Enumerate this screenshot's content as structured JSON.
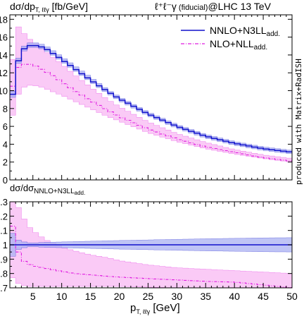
{
  "header": {
    "ylabel_main": "dσ/dp",
    "ylabel_main_sub": "T, ℓℓγ",
    "ylabel_main_unit": " [fb/GeV]",
    "process": "ℓ⁺ℓ⁻γ",
    "fiducial": " (fiducial)",
    "collider": "@LHC 13 TeV"
  },
  "side_note": {
    "prefix": "produced with ",
    "matrix": "Matrix",
    "plus": "+",
    "radish": "RadISH"
  },
  "legend": {
    "entries": [
      {
        "base": "NNLO+N3LL",
        "sub": "add.",
        "color": "#1010cc"
      },
      {
        "base": "NLO+NLL",
        "sub": "add.",
        "color": "#e01ce0"
      }
    ]
  },
  "ratio_label": {
    "base": "dσ/dσ",
    "sub": "NNLO+N3LL",
    "subsub": "add."
  },
  "xlabel": {
    "base": "p",
    "sub": "T, ℓℓγ",
    "unit": " [GeV]"
  },
  "colors": {
    "nnlo_line": "#1010cc",
    "nnlo_band": "#aab0f2",
    "nlo_line": "#e01ce0",
    "nlo_band": "#f8b8f3"
  },
  "chart_data": [
    {
      "type": "line",
      "panel": "main",
      "xlim": [
        1,
        50
      ],
      "ylim": [
        0,
        18.5
      ],
      "xticks": [
        5,
        10,
        15,
        20,
        25,
        30,
        35,
        40,
        45,
        50
      ],
      "yticks": [
        0,
        2,
        4,
        6,
        8,
        10,
        12,
        14,
        16,
        18
      ],
      "x": [
        1,
        2,
        3,
        4,
        5,
        6,
        7,
        8,
        10,
        12,
        15,
        18,
        20,
        25,
        30,
        35,
        40,
        45,
        50
      ],
      "series": [
        {
          "name": "NNLO+N3LL add.",
          "values": [
            6.9,
            12.3,
            14.4,
            15.0,
            15.1,
            15.0,
            14.8,
            14.4,
            13.5,
            12.6,
            11.2,
            9.9,
            9.1,
            7.4,
            6.0,
            4.9,
            4.1,
            3.5,
            3.1
          ],
          "band_low": [
            6.5,
            12.0,
            14.1,
            14.8,
            14.9,
            14.8,
            14.6,
            14.2,
            13.3,
            12.4,
            11.0,
            9.7,
            8.9,
            7.2,
            5.8,
            4.7,
            3.9,
            3.3,
            2.9
          ],
          "band_high": [
            7.3,
            12.6,
            14.7,
            15.3,
            15.4,
            15.3,
            15.1,
            14.7,
            13.8,
            12.9,
            11.5,
            10.1,
            9.3,
            7.6,
            6.2,
            5.1,
            4.3,
            3.7,
            3.3
          ]
        },
        {
          "name": "NLO+NLL add.",
          "values": [
            8.7,
            12.3,
            12.9,
            13.0,
            12.9,
            12.6,
            12.2,
            11.9,
            11.0,
            10.1,
            8.9,
            7.8,
            7.1,
            5.7,
            4.6,
            3.7,
            3.1,
            2.5,
            2.1
          ],
          "band_low": [
            5.5,
            9.0,
            10.2,
            10.6,
            10.6,
            10.5,
            10.3,
            10.0,
            9.5,
            8.9,
            8.0,
            7.1,
            6.6,
            5.3,
            4.3,
            3.5,
            2.9,
            2.4,
            2.0
          ],
          "band_high": [
            9.5,
            17.5,
            16.8,
            16.0,
            15.5,
            15.0,
            14.5,
            14.0,
            13.0,
            11.9,
            10.4,
            9.0,
            8.2,
            6.5,
            5.2,
            4.2,
            3.4,
            2.8,
            2.4
          ]
        }
      ]
    },
    {
      "type": "line",
      "panel": "ratio",
      "xlim": [
        1,
        50
      ],
      "ylim": [
        0.7,
        1.3
      ],
      "xticks": [
        5,
        10,
        15,
        20,
        25,
        30,
        35,
        40,
        45,
        50
      ],
      "yticks": [
        0.7,
        0.8,
        0.9,
        1,
        1.1,
        1.2,
        1.3
      ],
      "x": [
        1,
        2,
        3,
        4,
        5,
        6,
        7,
        8,
        10,
        12,
        15,
        18,
        20,
        25,
        30,
        35,
        40,
        45,
        50
      ],
      "series": [
        {
          "name": "NNLO+N3LL add.",
          "values": [
            1.0,
            1.0,
            1.0,
            1.0,
            1.0,
            1.0,
            1.0,
            1.0,
            1.0,
            1.0,
            1.0,
            1.0,
            1.0,
            1.0,
            1.0,
            1.0,
            1.0,
            1.0,
            1.0
          ],
          "band_low": [
            0.88,
            0.96,
            0.975,
            0.985,
            0.987,
            0.985,
            0.983,
            0.982,
            0.98,
            0.978,
            0.975,
            0.972,
            0.97,
            0.966,
            0.962,
            0.958,
            0.955,
            0.952,
            0.95
          ],
          "band_high": [
            1.12,
            1.04,
            1.025,
            1.015,
            1.013,
            1.015,
            1.017,
            1.018,
            1.02,
            1.022,
            1.025,
            1.028,
            1.03,
            1.034,
            1.038,
            1.042,
            1.045,
            1.048,
            1.05
          ]
        },
        {
          "name": "NLO+NLL add.",
          "values": [
            1.26,
            1.0,
            0.9,
            0.87,
            0.855,
            0.845,
            0.84,
            0.83,
            0.815,
            0.8,
            0.79,
            0.78,
            0.775,
            0.765,
            0.755,
            0.745,
            0.74,
            0.72,
            0.7
          ],
          "band_low": [
            0.8,
            0.74,
            0.72,
            0.71,
            0.71,
            0.71,
            0.71,
            0.71,
            0.71,
            0.71,
            0.71,
            0.71,
            0.71,
            0.705,
            0.7,
            0.7,
            0.7,
            0.7,
            0.7
          ],
          "band_high": [
            1.3,
            1.3,
            1.22,
            1.14,
            1.1,
            1.07,
            1.04,
            1.02,
            0.985,
            0.96,
            0.93,
            0.91,
            0.89,
            0.86,
            0.84,
            0.83,
            0.82,
            0.81,
            0.8
          ]
        }
      ]
    }
  ]
}
